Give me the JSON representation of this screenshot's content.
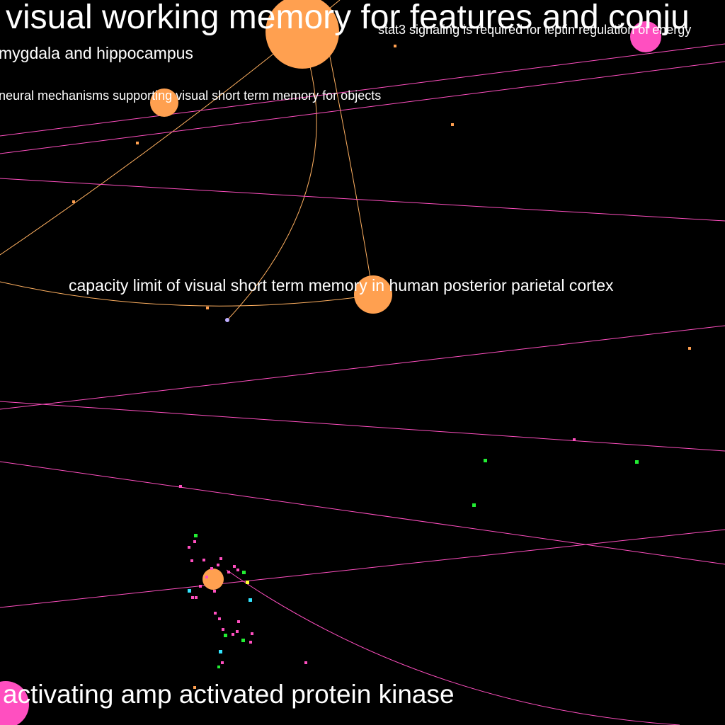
{
  "colors": {
    "background": "#000000",
    "memory_cluster": "#ffa050",
    "metabolic_cluster": "#ff4fc0",
    "green_cluster": "#22ee33",
    "cyan_cluster": "#33e5ff",
    "yellow_node": "#ffff33",
    "lavender_node": "#bfaeff",
    "memory_edge": "#ffb060",
    "metabolic_edge": "#ff4fc0"
  },
  "labels": {
    "visual_working_memory": "visual working memory for features and conju",
    "stat3_signaling": "stat3 signaling is required for leptin regulation of energy",
    "amygdala_hippocampus": "mygdala and hippocampus",
    "neural_mechanisms_vstm": "neural mechanisms supporting visual short term memory for objects",
    "capacity_limit_vstm": "capacity limit of visual short term memory in human posterior parietal cortex",
    "activating_ampk": "activating amp activated protein kinase"
  }
}
